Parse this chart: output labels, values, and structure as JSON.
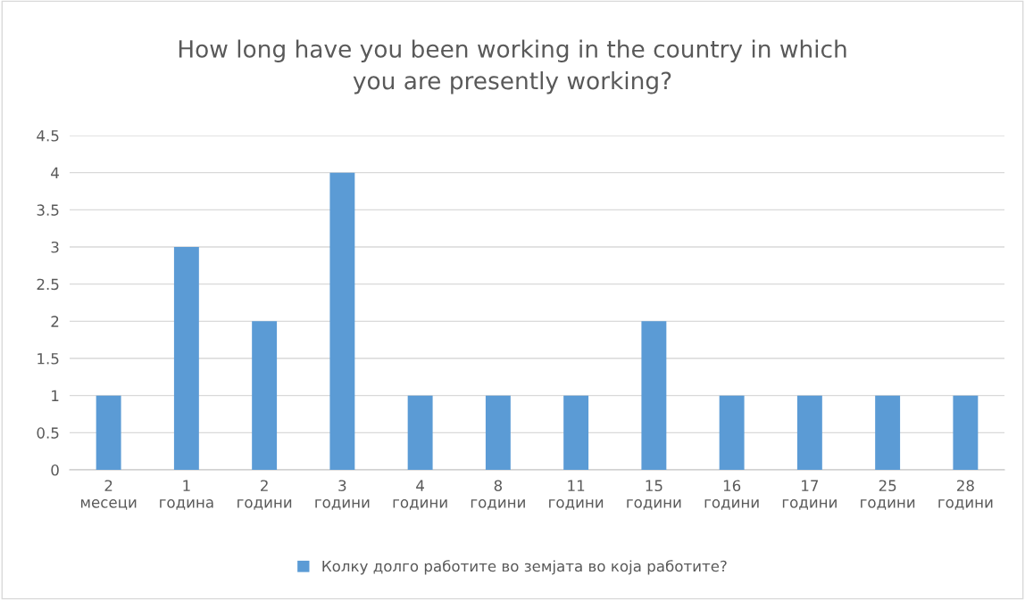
{
  "chart_data": {
    "type": "bar",
    "title": "How long have you been working in the country in which\nyou are presently working?",
    "categories": [
      "2\nмесеци",
      "1\nгодина",
      "2\nгодини",
      "3\nгодини",
      "4\nгодини",
      "8\nгодини",
      "11\nгодини",
      "15\nгодини",
      "16\nгодини",
      "17\nгодини",
      "25\nгодини",
      "28\nгодини"
    ],
    "series": [
      {
        "name": "Колку долго работите во земјата во која работите?",
        "color": "#5b9bd5",
        "values": [
          1,
          3,
          2,
          4,
          1,
          1,
          1,
          2,
          1,
          1,
          1,
          1
        ]
      }
    ],
    "ylim": [
      0,
      4.5
    ],
    "yticks": [
      0,
      0.5,
      1,
      1.5,
      2,
      2.5,
      3,
      3.5,
      4,
      4.5
    ],
    "grid": "y",
    "legend": "bottom"
  }
}
